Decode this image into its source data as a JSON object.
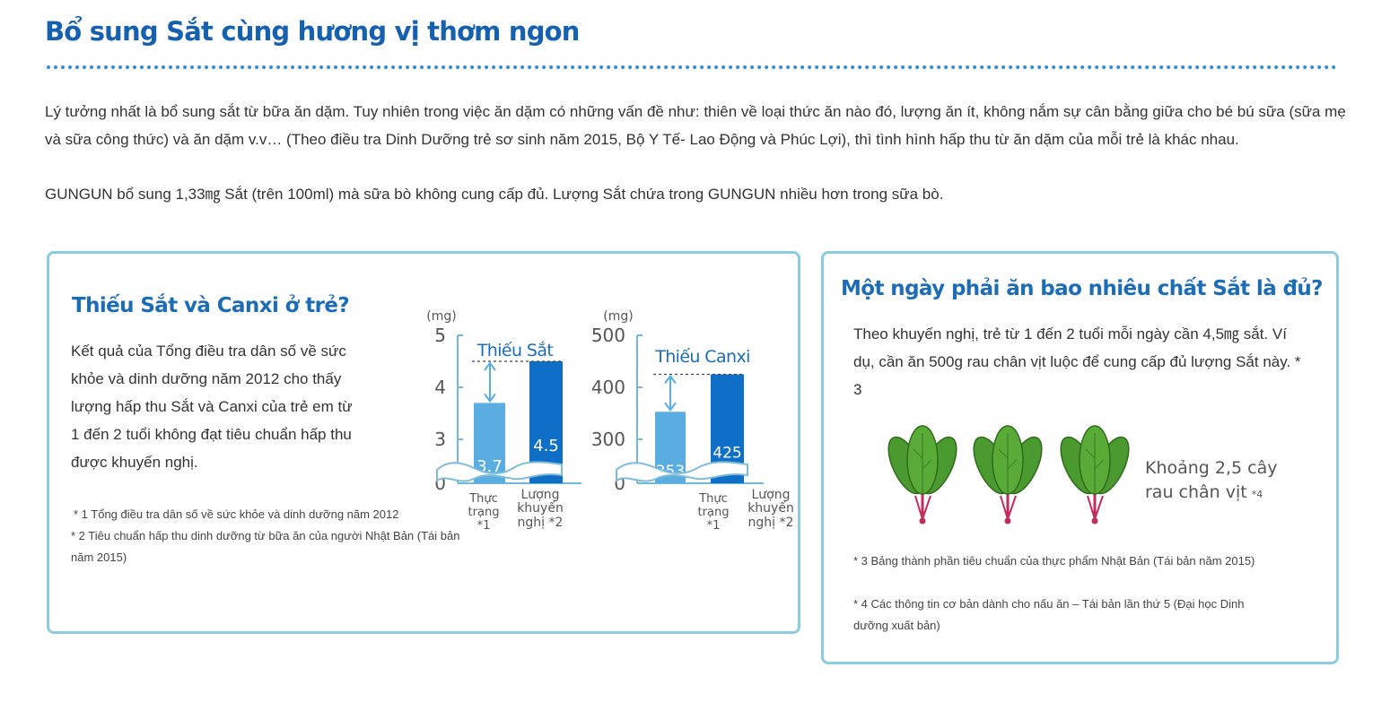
{
  "header": {
    "title": "Bổ sung Sắt cùng hương vị thơm ngon"
  },
  "intro": {
    "paragraph_1": "Lý tưởng nhất là bổ sung sắt từ bữa ăn dặm. Tuy nhiên trong việc ăn dặm có những vấn đề như: thiên về loại thức ăn nào đó, lượng ăn ít, không nắm sự cân bằng giữa cho bé bú sữa (sữa mẹ và sữa công thức) và ăn dặm v.v… (Theo điều tra Dinh Dưỡng trẻ sơ sinh năm 2015, Bộ Y Tế- Lao Động và Phúc Lợi), thì tình hình hấp thu từ ăn dặm của mỗi trẻ là khác nhau.",
    "paragraph_2": "GUNGUN bổ sung 1,33㎎ Sắt (trên 100ml) mà sữa bò không cung cấp đủ. Lượng Sắt chứa trong GUNGUN nhiều hơn trong sữa bò."
  },
  "left_panel": {
    "heading": "Thiếu Sắt và Canxi ở trẻ?",
    "body": "Kết quả của Tổng điều tra dân số về sức khỏe và dinh dưỡng năm 2012 cho thấy lượng hấp thu Sắt và Canxi của trẻ em từ 1 đến 2 tuổi không đạt tiêu chuẩn hấp thu được khuyến nghị.",
    "footnote_1": "* 1  Tổng điều tra dân số về sức khỏe và dinh dưỡng năm 2012",
    "footnote_2": "* 2  Tiêu chuẩn hấp thu dinh dưỡng từ bữa ăn của người Nhật Bản (Tái bản năm 2015)"
  },
  "right_panel": {
    "heading": "Một ngày phải ăn bao nhiêu chất Sắt là đủ?",
    "body": "Theo khuyến nghị, trẻ từ 1 đến 2 tuổi mỗi ngày cần 4,5㎎ sắt. Ví dụ, cần ăn 500g rau chân vịt luộc để cung cấp đủ lượng Sắt này. * 3",
    "spinach_caption_line1": "Khoảng 2,5 cây",
    "spinach_caption_line2": "rau chân vịt",
    "spinach_caption_note": "*4",
    "footnote_3": "* 3  Bảng thành phần tiêu chuẩn của thực phẩm Nhật Bản (Tái bản năm 2015)",
    "footnote_4": "* 4  Các thông tin cơ bản dành cho nấu ăn – Tái bản lần thứ 5 (Đại học Dinh dưỡng xuất bản)",
    "spinach_icon_count": 3
  },
  "colors": {
    "title_blue": "#1560b0",
    "heading_blue": "#1d6cb6",
    "panel_border": "#8ccbe0",
    "bar_light": "#5aade0",
    "bar_dark": "#0f6fc6",
    "axis": "#6fb8e0",
    "spinach_leaf": "#4a9a30",
    "spinach_stem": "#c22b5a"
  },
  "chart_data": [
    {
      "type": "bar",
      "unit_label": "(mg)",
      "annotation": "Thiếu Sắt",
      "yticks": [
        "5",
        "4",
        "3",
        "0"
      ],
      "ylim": [
        0,
        5
      ],
      "axis_break": true,
      "categories": [
        {
          "line1": "Thực",
          "line2": "trạng",
          "line3": "*1"
        },
        {
          "line1": "Lượng",
          "line2": "khuyến",
          "line3": "nghị *2"
        }
      ],
      "values": [
        3.7,
        4.5
      ],
      "value_labels": [
        "3.7",
        "4.5"
      ]
    },
    {
      "type": "bar",
      "unit_label": "(mg)",
      "annotation": "Thiếu Canxi",
      "yticks": [
        "500",
        "400",
        "300",
        "0"
      ],
      "ylim": [
        0,
        500
      ],
      "axis_break": true,
      "categories": [
        {
          "line1": "Thực",
          "line2": "trạng",
          "line3": "*1"
        },
        {
          "line1": "Lượng",
          "line2": "khuyến",
          "line3": "nghị *2"
        }
      ],
      "values": [
        353,
        425
      ],
      "value_labels": [
        "353",
        "425"
      ]
    }
  ]
}
